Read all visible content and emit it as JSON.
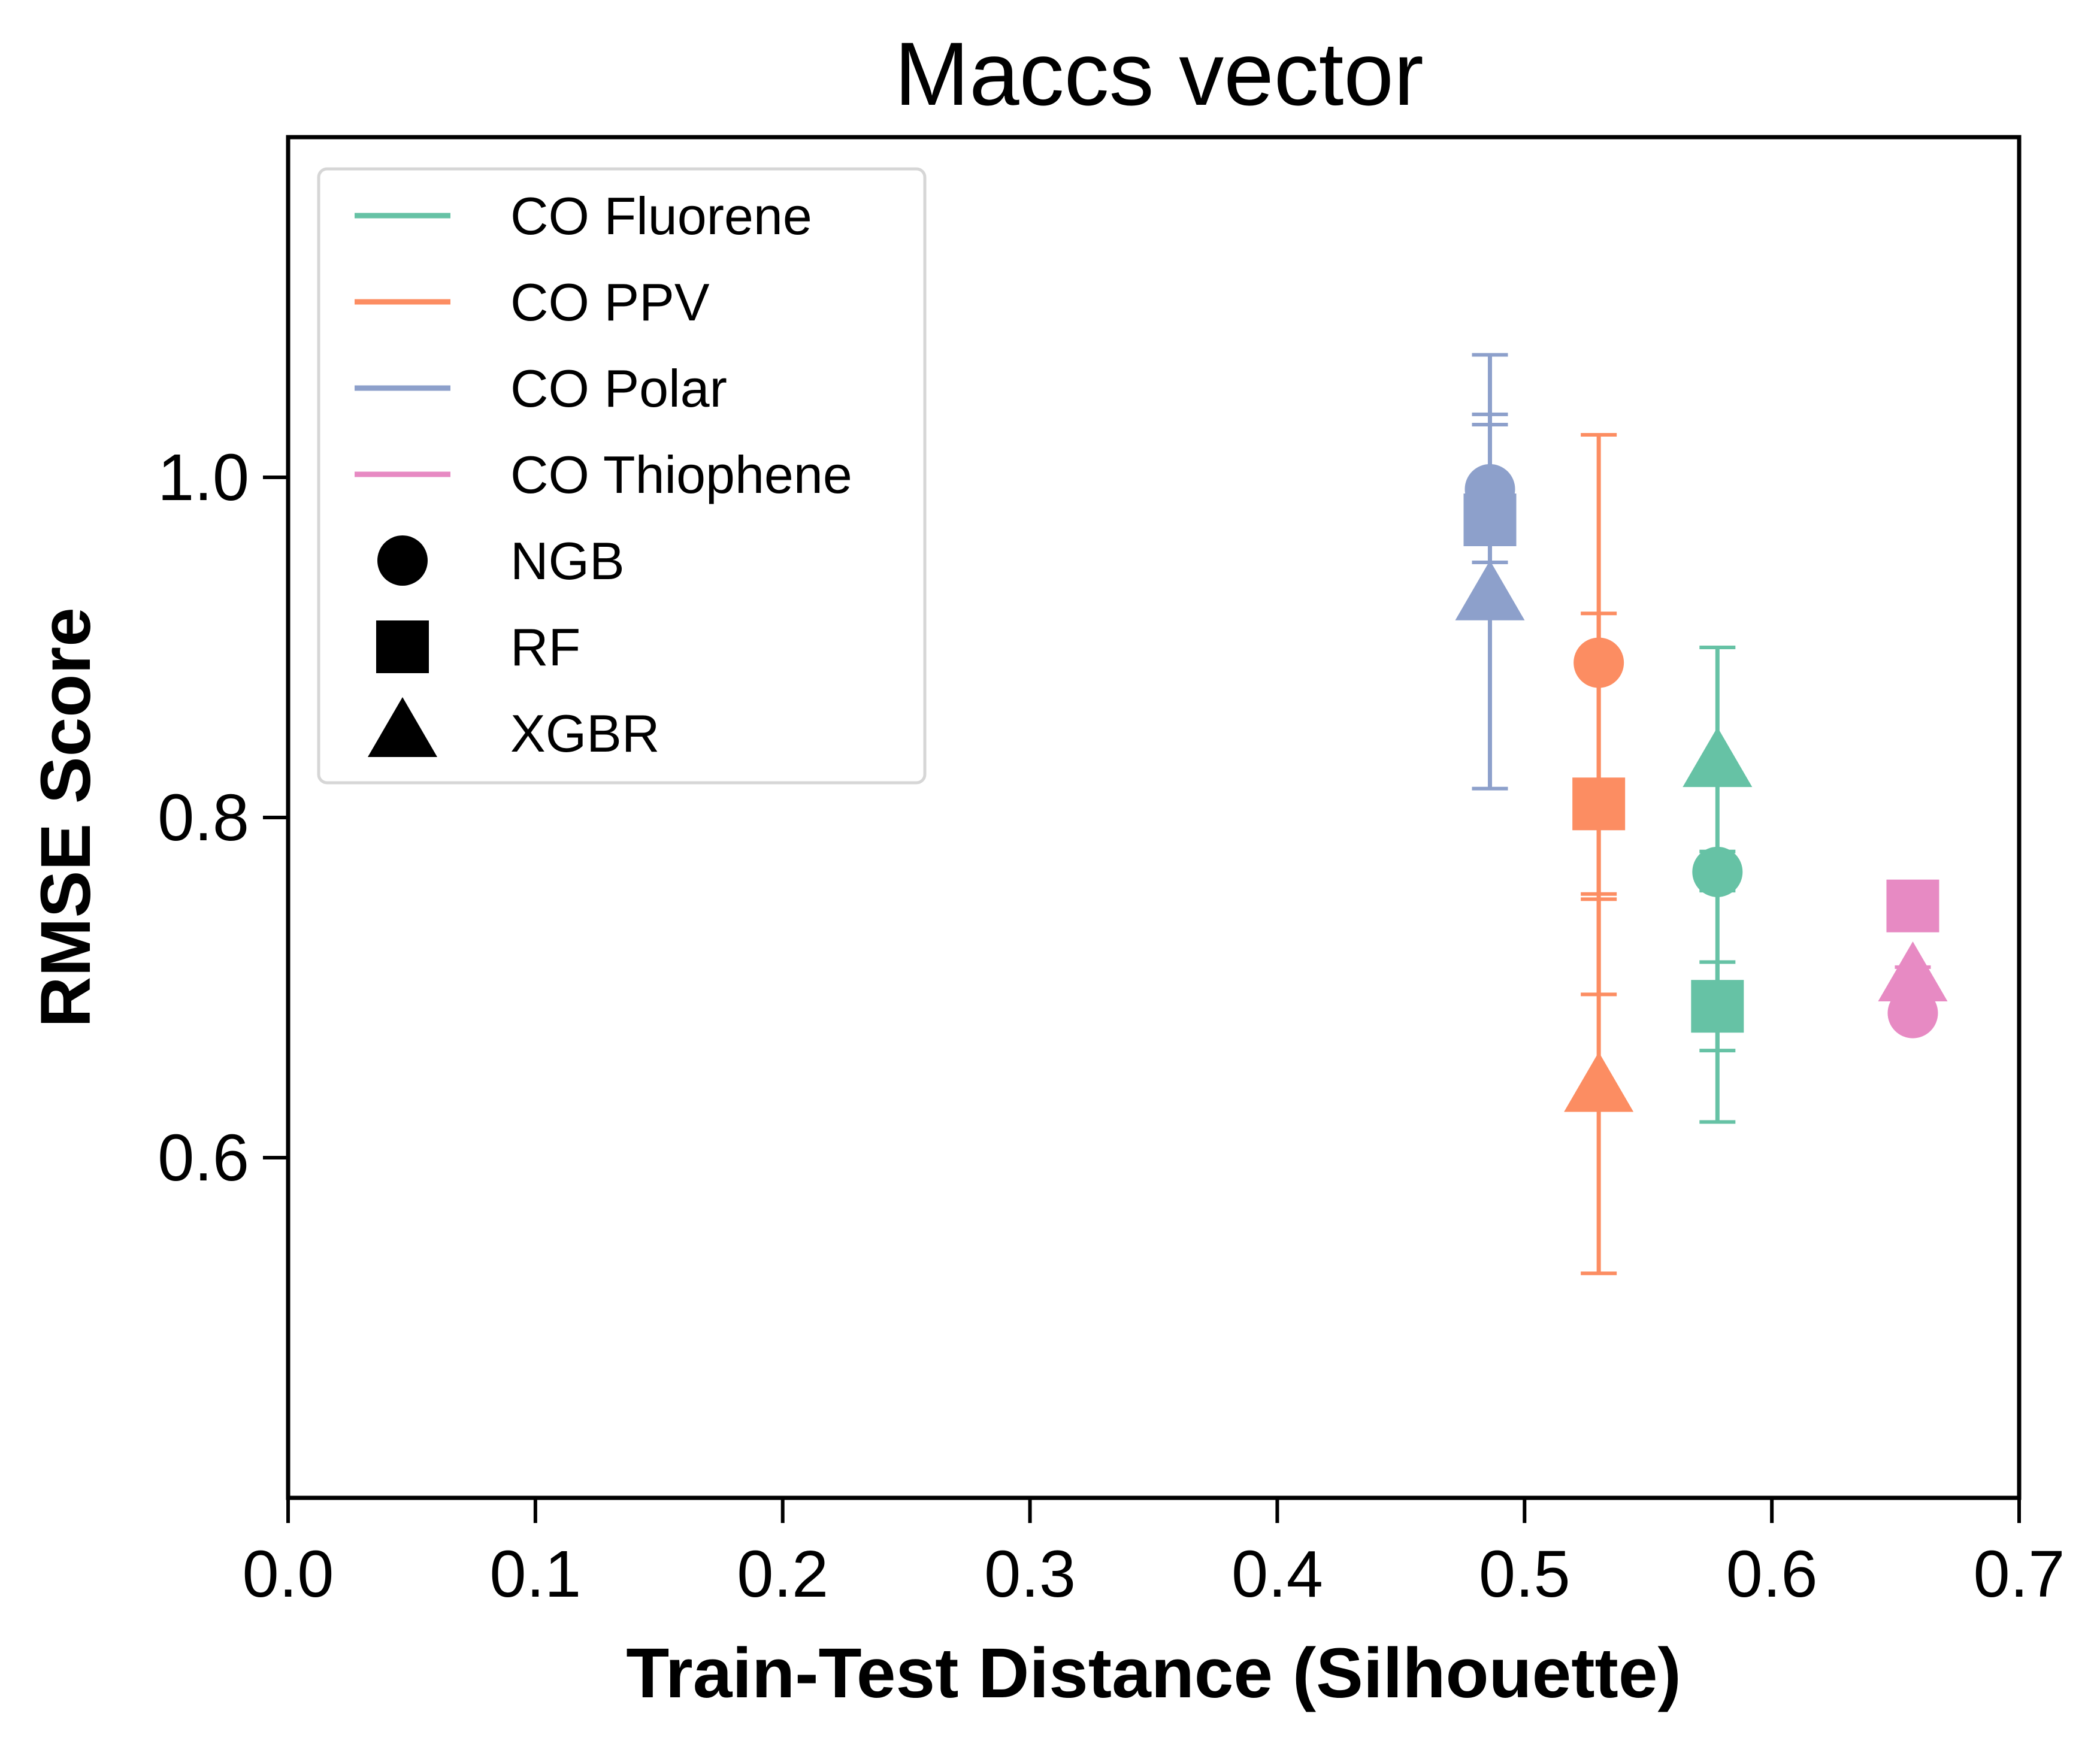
{
  "chart_data": {
    "type": "scatter",
    "title": "Maccs vector",
    "xlabel": "Train-Test Distance (Silhouette)",
    "ylabel": "RMSE Score",
    "xlim": [
      0.0,
      0.7
    ],
    "ylim": [
      0.4,
      1.2
    ],
    "xticks": [
      "0.0",
      "0.1",
      "0.2",
      "0.3",
      "0.4",
      "0.5",
      "0.6",
      "0.7"
    ],
    "yticks": [
      "0.6",
      "0.8",
      "1.0"
    ],
    "grid": false,
    "legend_position": "top-left",
    "series": [
      {
        "name": "CO Fluorene",
        "color": "#66c2a5",
        "x": 0.578,
        "points": [
          {
            "model": "NGB",
            "y": 0.768,
            "err_low": 0.757,
            "err_high": 0.78
          },
          {
            "model": "RF",
            "y": 0.689,
            "err_low": 0.663,
            "err_high": 0.715
          },
          {
            "model": "XGBR",
            "y": 0.832,
            "err_low": 0.621,
            "err_high": 0.9
          }
        ]
      },
      {
        "name": "CO PPV",
        "color": "#fc8d62",
        "x": 0.53,
        "points": [
          {
            "model": "NGB",
            "y": 0.891,
            "err_low": 0.755,
            "err_high": 1.025
          },
          {
            "model": "RF",
            "y": 0.808,
            "err_low": 0.696,
            "err_high": 0.92
          },
          {
            "model": "XGBR",
            "y": 0.641,
            "err_low": 0.532,
            "err_high": 0.752
          }
        ]
      },
      {
        "name": "CO Polar",
        "color": "#8da0cb",
        "x": 0.486,
        "points": [
          {
            "model": "NGB",
            "y": 0.993,
            "err_low": 0.95,
            "err_high": 1.037
          },
          {
            "model": "RF",
            "y": 0.975,
            "err_low": 0.918,
            "err_high": 1.031
          },
          {
            "model": "XGBR",
            "y": 0.93,
            "err_low": 0.817,
            "err_high": 1.072
          }
        ]
      },
      {
        "name": "CO Thiophene",
        "color": "#e78ac3",
        "x": 0.657,
        "points": [
          {
            "model": "NGB",
            "y": 0.685,
            "err_low": 0.68,
            "err_high": 0.69
          },
          {
            "model": "RF",
            "y": 0.748,
            "err_low": 0.743,
            "err_high": 0.753
          },
          {
            "model": "XGBR",
            "y": 0.706,
            "err_low": 0.7,
            "err_high": 0.712
          }
        ]
      }
    ],
    "markers": [
      {
        "name": "NGB",
        "shape": "circle"
      },
      {
        "name": "RF",
        "shape": "square"
      },
      {
        "name": "XGBR",
        "shape": "triangle"
      }
    ]
  }
}
